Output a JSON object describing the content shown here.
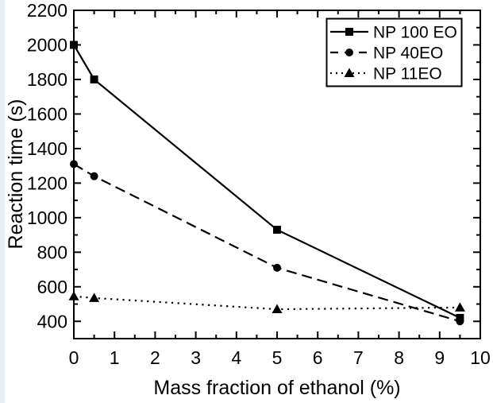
{
  "chart_data": {
    "type": "line",
    "title": "",
    "xlabel": "Mass fraction of ethanol (%)",
    "ylabel": "Reaction time (s)",
    "xlim": [
      0,
      10
    ],
    "ylim": [
      300,
      2200
    ],
    "x_major_tick_step": 1,
    "x_minor_tick_step": 0.5,
    "y_major_ticks": [
      400,
      600,
      800,
      1000,
      1200,
      1400,
      1600,
      1800,
      2000,
      2200
    ],
    "y_minor_tick_step": 100,
    "grid": false,
    "legend_position": "top-right",
    "x": [
      0,
      0.5,
      5,
      9.5
    ],
    "series": [
      {
        "name": "NP 100 EO",
        "line_style": "solid",
        "marker": "square",
        "values": [
          2000,
          1800,
          930,
          420
        ]
      },
      {
        "name": "NP 40EO",
        "line_style": "dashed",
        "marker": "circle",
        "values": [
          1310,
          1240,
          710,
          400
        ]
      },
      {
        "name": "NP 11EO",
        "line_style": "dotted",
        "marker": "triangle",
        "values": [
          545,
          535,
          470,
          480
        ]
      }
    ],
    "colors": {
      "foreground": "#000000",
      "background": "#ffffff",
      "edge_strip": "#e9eef6"
    }
  }
}
